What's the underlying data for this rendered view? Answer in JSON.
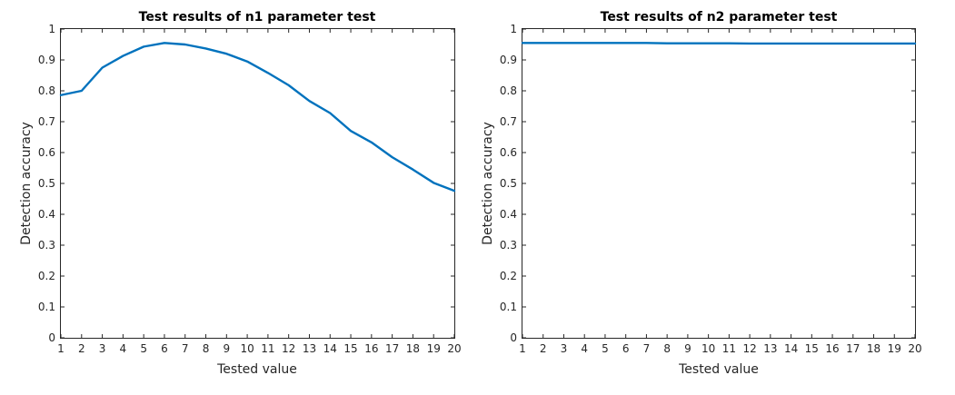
{
  "chart_data": [
    {
      "type": "line",
      "title": "Test results of n1 parameter test",
      "xlabel": "Tested value",
      "ylabel": "Detection accuracy",
      "xlim": [
        1,
        20
      ],
      "ylim": [
        0,
        1
      ],
      "x_ticks": [
        "1",
        "2",
        "3",
        "4",
        "5",
        "6",
        "7",
        "8",
        "9",
        "10",
        "11",
        "12",
        "13",
        "14",
        "15",
        "16",
        "17",
        "18",
        "19",
        "20"
      ],
      "y_ticks": [
        "0",
        "0.1",
        "0.2",
        "0.3",
        "0.4",
        "0.5",
        "0.6",
        "0.7",
        "0.8",
        "0.9",
        "1"
      ],
      "grid": false,
      "color": "#0072BD",
      "series": [
        {
          "x": [
            1,
            2,
            3,
            4,
            5,
            6,
            7,
            8,
            9,
            10,
            11,
            12,
            13,
            14,
            15,
            16,
            17,
            18,
            19,
            20
          ],
          "values": [
            0.786,
            0.8,
            0.875,
            0.913,
            0.943,
            0.955,
            0.95,
            0.937,
            0.92,
            0.895,
            0.858,
            0.818,
            0.767,
            0.728,
            0.67,
            0.633,
            0.585,
            0.545,
            0.502,
            0.476
          ]
        }
      ]
    },
    {
      "type": "line",
      "title": "Test results of n2 parameter test",
      "xlabel": "Tested value",
      "ylabel": "Detection accuracy",
      "xlim": [
        1,
        20
      ],
      "ylim": [
        0,
        1
      ],
      "x_ticks": [
        "1",
        "2",
        "3",
        "4",
        "5",
        "6",
        "7",
        "8",
        "9",
        "10",
        "11",
        "12",
        "13",
        "14",
        "15",
        "16",
        "17",
        "18",
        "19",
        "20"
      ],
      "y_ticks": [
        "0",
        "0.1",
        "0.2",
        "0.3",
        "0.4",
        "0.5",
        "0.6",
        "0.7",
        "0.8",
        "0.9",
        "1"
      ],
      "grid": false,
      "color": "#0072BD",
      "series": [
        {
          "x": [
            1,
            2,
            3,
            4,
            5,
            6,
            7,
            8,
            9,
            10,
            11,
            12,
            13,
            14,
            15,
            16,
            17,
            18,
            19,
            20
          ],
          "values": [
            0.955,
            0.955,
            0.955,
            0.955,
            0.955,
            0.955,
            0.955,
            0.954,
            0.954,
            0.954,
            0.954,
            0.953,
            0.953,
            0.953,
            0.953,
            0.953,
            0.953,
            0.953,
            0.953,
            0.953
          ]
        }
      ]
    }
  ]
}
